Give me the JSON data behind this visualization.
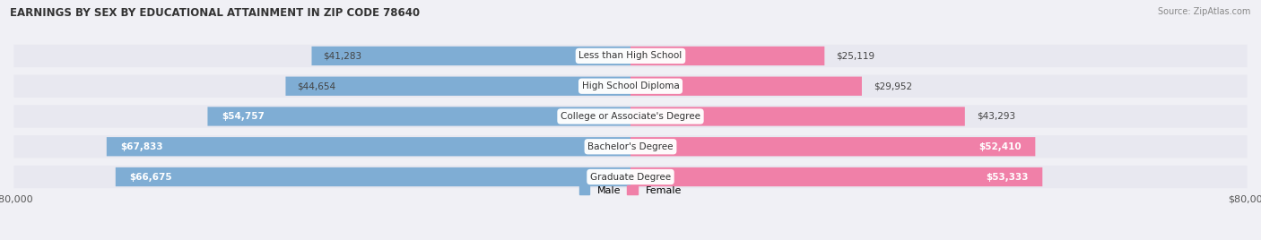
{
  "title": "EARNINGS BY SEX BY EDUCATIONAL ATTAINMENT IN ZIP CODE 78640",
  "source": "Source: ZipAtlas.com",
  "categories": [
    "Less than High School",
    "High School Diploma",
    "College or Associate's Degree",
    "Bachelor's Degree",
    "Graduate Degree"
  ],
  "male_values": [
    41283,
    44654,
    54757,
    67833,
    66675
  ],
  "female_values": [
    25119,
    29952,
    43293,
    52410,
    53333
  ],
  "max_value": 80000,
  "male_color": "#7fadd4",
  "female_color": "#f080a8",
  "bg_color": "#f0f0f5",
  "row_bg_color": "#e8e8f0",
  "bar_height": 0.62,
  "inner_label_threshold": 48000,
  "inner_label_color": "#ffffff",
  "outer_label_color": "#444444"
}
